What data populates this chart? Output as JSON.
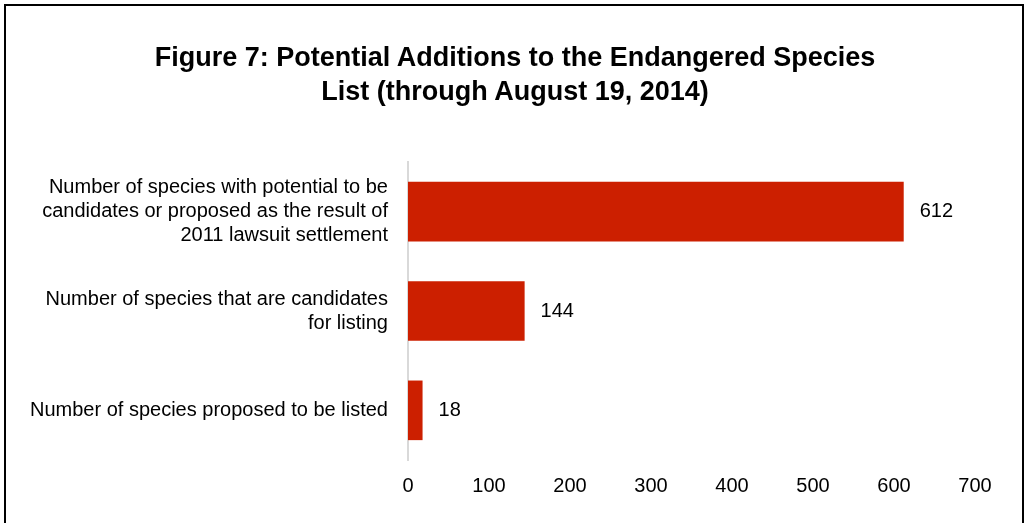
{
  "chart_data": {
    "type": "bar",
    "orientation": "horizontal",
    "title": "Figure 7: Potential Additions to the Endangered Species List (through August 19, 2014)",
    "categories": [
      "Number of species with potential to be candidates or proposed as the result of 2011 lawsuit settlement",
      "Number of species that are candidates for listing",
      "Number of species proposed to be listed"
    ],
    "values": [
      612,
      144,
      18
    ],
    "color": "#cc1f00",
    "xlim": [
      0,
      700
    ],
    "xticks": [
      0,
      100,
      200,
      300,
      400,
      500,
      600,
      700
    ],
    "grid": false,
    "legend": false,
    "data_labels": true
  }
}
